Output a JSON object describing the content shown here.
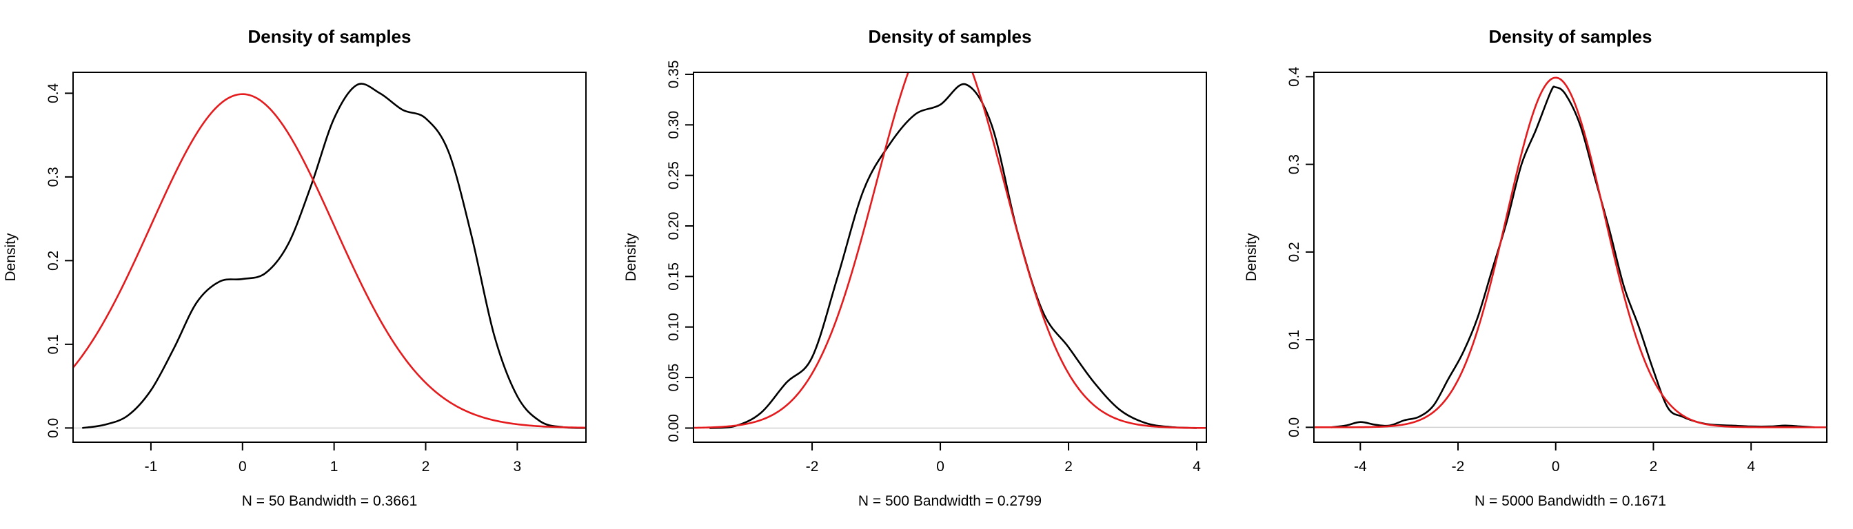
{
  "chart_data": [
    {
      "type": "line",
      "title": "Density of samples",
      "xlabel": "N = 50   Bandwidth = 0.3661",
      "ylabel": "Density",
      "xlim": [
        -1.85,
        3.75
      ],
      "ylim": [
        -0.017,
        0.425
      ],
      "xticks": [
        -1,
        0,
        1,
        2,
        3
      ],
      "xtick_labels": [
        "-1",
        "0",
        "1",
        "2",
        "3"
      ],
      "yticks": [
        0.0,
        0.1,
        0.2,
        0.3,
        0.4
      ],
      "ytick_labels": [
        "0.0",
        "0.1",
        "0.2",
        "0.3",
        "0.4"
      ],
      "grid": false,
      "series": [
        {
          "color": "#000000",
          "x": [
            -1.75,
            -1.5,
            -1.25,
            -1.0,
            -0.75,
            -0.5,
            -0.25,
            0.0,
            0.25,
            0.5,
            0.75,
            1.0,
            1.25,
            1.5,
            1.75,
            2.0,
            2.25,
            2.5,
            2.75,
            3.0,
            3.25,
            3.5,
            3.75
          ],
          "y": [
            0.0,
            0.004,
            0.015,
            0.045,
            0.095,
            0.15,
            0.175,
            0.178,
            0.185,
            0.22,
            0.29,
            0.37,
            0.41,
            0.4,
            0.38,
            0.37,
            0.33,
            0.23,
            0.11,
            0.038,
            0.008,
            0.001,
            0.0
          ]
        },
        {
          "color": "#e41a1c",
          "function": "normal_pdf",
          "mean": 0,
          "sd": 1,
          "x_range": [
            -1.85,
            3.75
          ]
        }
      ]
    },
    {
      "type": "line",
      "title": "Density of samples",
      "xlabel": "N = 500   Bandwidth = 0.2799",
      "ylabel": "Density",
      "xlim": [
        -3.85,
        4.15
      ],
      "ylim": [
        -0.014,
        0.352
      ],
      "xticks": [
        -2,
        0,
        2,
        4
      ],
      "xtick_labels": [
        "-2",
        "0",
        "2",
        "4"
      ],
      "yticks": [
        0.0,
        0.05,
        0.1,
        0.15,
        0.2,
        0.25,
        0.3,
        0.35
      ],
      "ytick_labels": [
        "0.00",
        "0.05",
        "0.10",
        "0.15",
        "0.20",
        "0.25",
        "0.30",
        "0.35"
      ],
      "grid": false,
      "series": [
        {
          "color": "#000000",
          "x": [
            -3.6,
            -3.2,
            -2.8,
            -2.4,
            -2.0,
            -1.6,
            -1.2,
            -0.8,
            -0.4,
            0.0,
            0.4,
            0.8,
            1.2,
            1.6,
            2.0,
            2.4,
            2.8,
            3.2,
            3.6,
            4.0
          ],
          "y": [
            0.0,
            0.002,
            0.015,
            0.045,
            0.07,
            0.15,
            0.235,
            0.28,
            0.31,
            0.32,
            0.34,
            0.3,
            0.195,
            0.115,
            0.08,
            0.045,
            0.018,
            0.005,
            0.001,
            0.0
          ]
        },
        {
          "color": "#e41a1c",
          "function": "normal_pdf",
          "mean": 0,
          "sd": 1,
          "x_range": [
            -3.85,
            4.15
          ]
        }
      ]
    },
    {
      "type": "line",
      "title": "Density of samples",
      "xlabel": "N = 5000   Bandwidth = 0.1671",
      "ylabel": "Density",
      "xlim": [
        -4.95,
        5.55
      ],
      "ylim": [
        -0.017,
        0.405
      ],
      "xticks": [
        -4,
        -2,
        0,
        2,
        4
      ],
      "xtick_labels": [
        "-4",
        "-2",
        "0",
        "2",
        "4"
      ],
      "yticks": [
        0.0,
        0.1,
        0.2,
        0.3,
        0.4
      ],
      "ytick_labels": [
        "0.0",
        "0.1",
        "0.2",
        "0.3",
        "0.4"
      ],
      "grid": false,
      "series": [
        {
          "color": "#000000",
          "x": [
            -4.6,
            -4.3,
            -4.0,
            -3.7,
            -3.4,
            -3.1,
            -2.8,
            -2.5,
            -2.2,
            -1.9,
            -1.6,
            -1.3,
            -1.0,
            -0.7,
            -0.4,
            -0.1,
            0.0,
            0.2,
            0.5,
            0.8,
            1.1,
            1.4,
            1.7,
            2.0,
            2.3,
            2.6,
            2.9,
            3.2,
            3.6,
            4.0,
            4.4,
            4.7,
            5.0,
            5.3
          ],
          "y": [
            0.0,
            0.002,
            0.006,
            0.003,
            0.002,
            0.008,
            0.012,
            0.025,
            0.055,
            0.085,
            0.125,
            0.18,
            0.235,
            0.3,
            0.34,
            0.383,
            0.388,
            0.38,
            0.345,
            0.285,
            0.225,
            0.16,
            0.115,
            0.065,
            0.022,
            0.012,
            0.006,
            0.003,
            0.002,
            0.001,
            0.001,
            0.002,
            0.001,
            0.0
          ]
        },
        {
          "color": "#e41a1c",
          "function": "normal_pdf",
          "mean": 0,
          "sd": 1,
          "x_range": [
            -4.95,
            5.55
          ]
        }
      ]
    }
  ]
}
